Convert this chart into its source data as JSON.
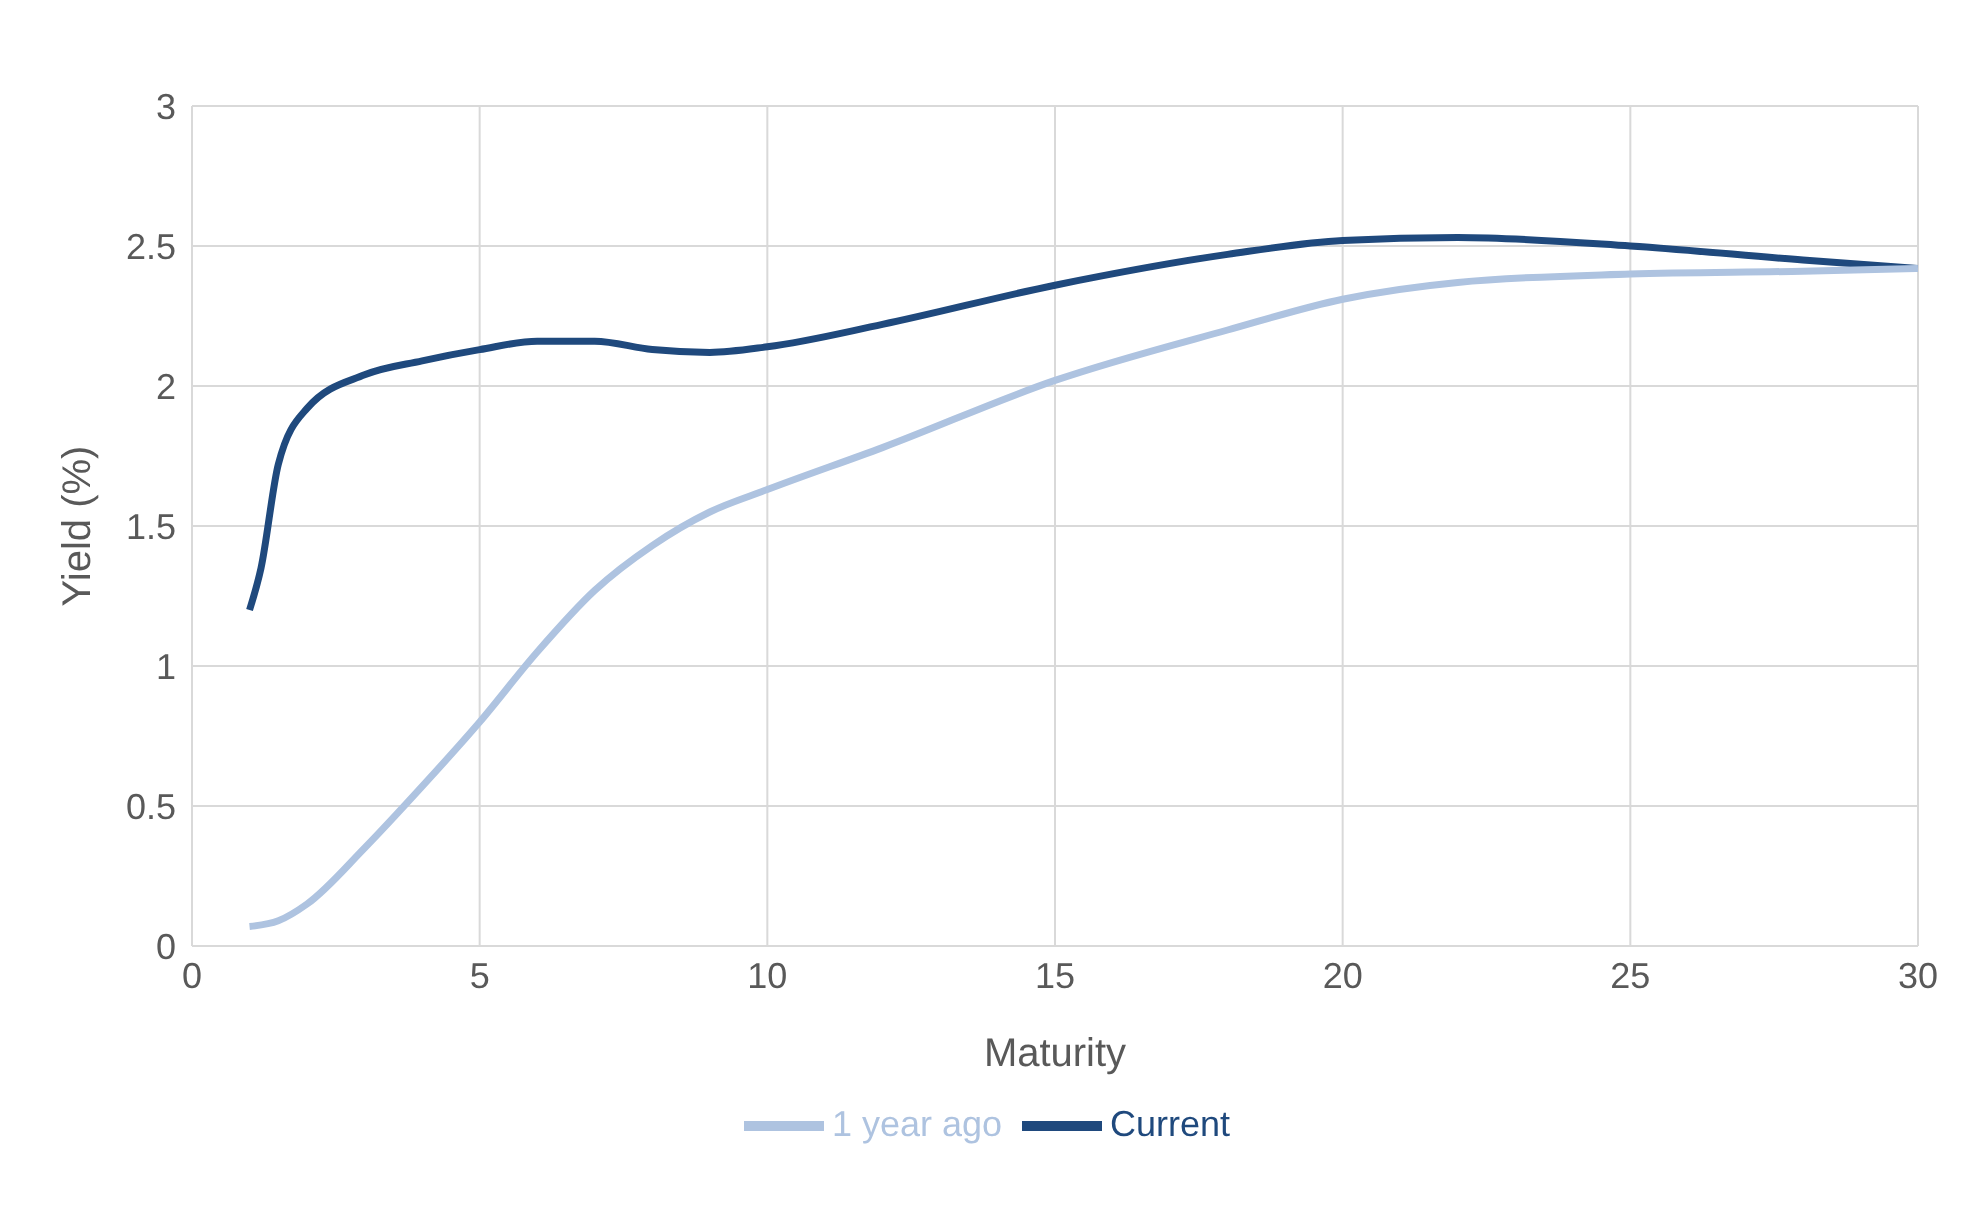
{
  "chart_data": {
    "type": "line",
    "xlabel": "Maturity",
    "ylabel": "Yield (%)",
    "xlim": [
      0,
      30
    ],
    "xticks": [
      0,
      5,
      10,
      15,
      20,
      25,
      30
    ],
    "ylim": [
      0,
      3
    ],
    "yticks": [
      0,
      0.5,
      1,
      1.5,
      2,
      2.5,
      3
    ],
    "grid": true,
    "legend": "bottom",
    "marker": "none",
    "line_style": "solid",
    "series": [
      {
        "name": "Current",
        "color": "#1f497d",
        "x": [
          1,
          1.2,
          1.5,
          2,
          3,
          4,
          5,
          6,
          7,
          8,
          9,
          10,
          12,
          15,
          18,
          20,
          22,
          25,
          28,
          30
        ],
        "values": [
          1.2,
          1.35,
          1.72,
          1.92,
          2.04,
          2.09,
          2.13,
          2.16,
          2.16,
          2.13,
          2.12,
          2.14,
          2.22,
          2.36,
          2.47,
          2.52,
          2.53,
          2.5,
          2.45,
          2.42
        ]
      },
      {
        "name": "1 year ago",
        "color": "#aec3e0",
        "x": [
          1,
          1.5,
          2,
          3,
          4,
          5,
          6,
          7,
          8,
          9,
          10,
          12,
          15,
          18,
          20,
          22,
          25,
          28,
          30
        ],
        "values": [
          0.07,
          0.09,
          0.15,
          0.35,
          0.57,
          0.8,
          1.05,
          1.27,
          1.43,
          1.55,
          1.63,
          1.78,
          2.02,
          2.2,
          2.31,
          2.37,
          2.4,
          2.41,
          2.42
        ]
      }
    ]
  }
}
